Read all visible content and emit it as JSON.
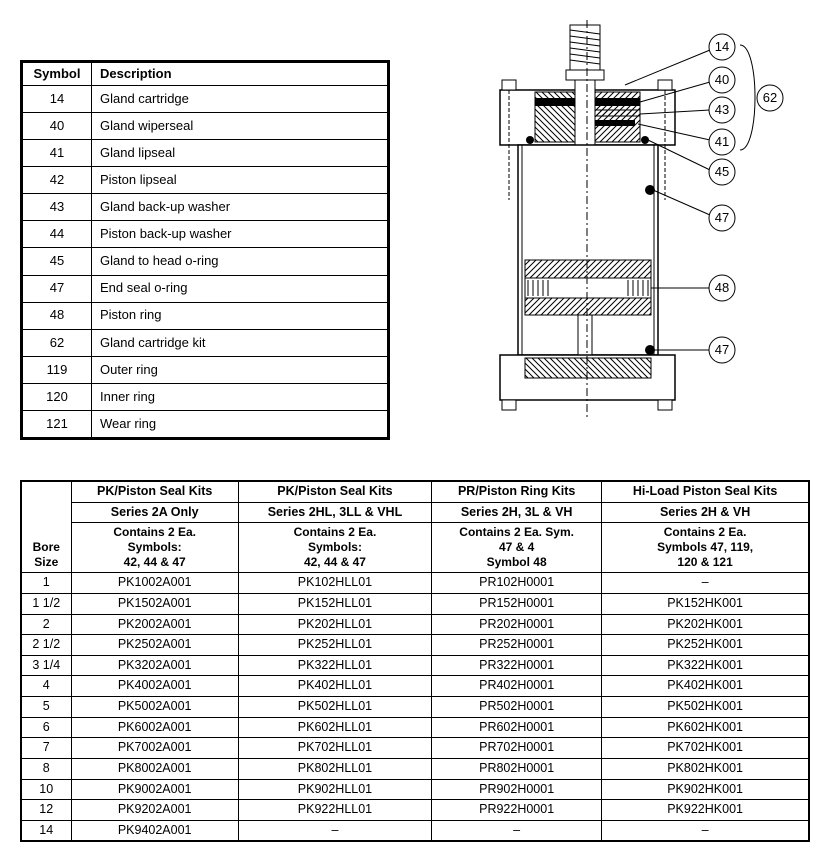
{
  "symbolTable": {
    "headers": [
      "Symbol",
      "Description"
    ],
    "rows": [
      [
        "14",
        "Gland cartridge"
      ],
      [
        "40",
        "Gland wiperseal"
      ],
      [
        "41",
        "Gland lipseal"
      ],
      [
        "42",
        "Piston lipseal"
      ],
      [
        "43",
        "Gland back-up washer"
      ],
      [
        "44",
        "Piston back-up washer"
      ],
      [
        "45",
        "Gland to head o-ring"
      ],
      [
        "47",
        "End seal o-ring"
      ],
      [
        "48",
        "Piston ring"
      ],
      [
        "62",
        "Gland cartridge kit"
      ],
      [
        "119",
        "Outer ring"
      ],
      [
        "120",
        "Inner ring"
      ],
      [
        "121",
        "Wear ring"
      ]
    ]
  },
  "diagram": {
    "callouts": [
      "14",
      "40",
      "43",
      "41",
      "45",
      "47",
      "48",
      "47",
      "62"
    ],
    "stroke": "#000000",
    "hatch": "#000000"
  },
  "kitsTable": {
    "boreHead": "Bore\nSize",
    "groups": [
      {
        "title": "PK/Piston Seal Kits",
        "series": "Series 2A Only",
        "contains": "Contains 2 Ea.\nSymbols:\n42, 44  & 47"
      },
      {
        "title": "PK/Piston Seal Kits",
        "series": "Series 2HL, 3LL & VHL",
        "contains": "Contains 2 Ea.\nSymbols:\n42, 44 & 47"
      },
      {
        "title": "PR/Piston Ring Kits",
        "series": "Series 2H, 3L & VH",
        "contains": "Contains 2 Ea. Sym.\n47 & 4\nSymbol 48"
      },
      {
        "title": "Hi-Load Piston Seal Kits",
        "series": "Series 2H & VH",
        "contains": "Contains 2 Ea.\nSymbols 47, 119,\n120 & 121"
      }
    ],
    "rows": [
      {
        "bore": "1",
        "c": [
          "PK1002A001",
          "PK102HLL01",
          "PR102H0001",
          "–"
        ]
      },
      {
        "bore": "1 1/2",
        "c": [
          "PK1502A001",
          "PK152HLL01",
          "PR152H0001",
          "PK152HK001"
        ]
      },
      {
        "bore": "2",
        "c": [
          "PK2002A001",
          "PK202HLL01",
          "PR202H0001",
          "PK202HK001"
        ]
      },
      {
        "bore": "2 1/2",
        "c": [
          "PK2502A001",
          "PK252HLL01",
          "PR252H0001",
          "PK252HK001"
        ]
      },
      {
        "bore": "3 1/4",
        "c": [
          "PK3202A001",
          "PK322HLL01",
          "PR322H0001",
          "PK322HK001"
        ]
      },
      {
        "bore": "4",
        "c": [
          "PK4002A001",
          "PK402HLL01",
          "PR402H0001",
          "PK402HK001"
        ]
      },
      {
        "bore": "5",
        "c": [
          "PK5002A001",
          "PK502HLL01",
          "PR502H0001",
          "PK502HK001"
        ]
      },
      {
        "bore": "6",
        "c": [
          "PK6002A001",
          "PK602HLL01",
          "PR602H0001",
          "PK602HK001"
        ]
      },
      {
        "bore": "7",
        "c": [
          "PK7002A001",
          "PK702HLL01",
          "PR702H0001",
          "PK702HK001"
        ]
      },
      {
        "bore": "8",
        "c": [
          "PK8002A001",
          "PK802HLL01",
          "PR802H0001",
          "PK802HK001"
        ]
      },
      {
        "bore": "10",
        "c": [
          "PK9002A001",
          "PK902HLL01",
          "PR902H0001",
          "PK902HK001"
        ]
      },
      {
        "bore": "12",
        "c": [
          "PK9202A001",
          "PK922HLL01",
          "PR922H0001",
          "PK922HK001"
        ]
      },
      {
        "bore": "14",
        "c": [
          "PK9402A001",
          "–",
          "–",
          "–"
        ]
      }
    ]
  }
}
